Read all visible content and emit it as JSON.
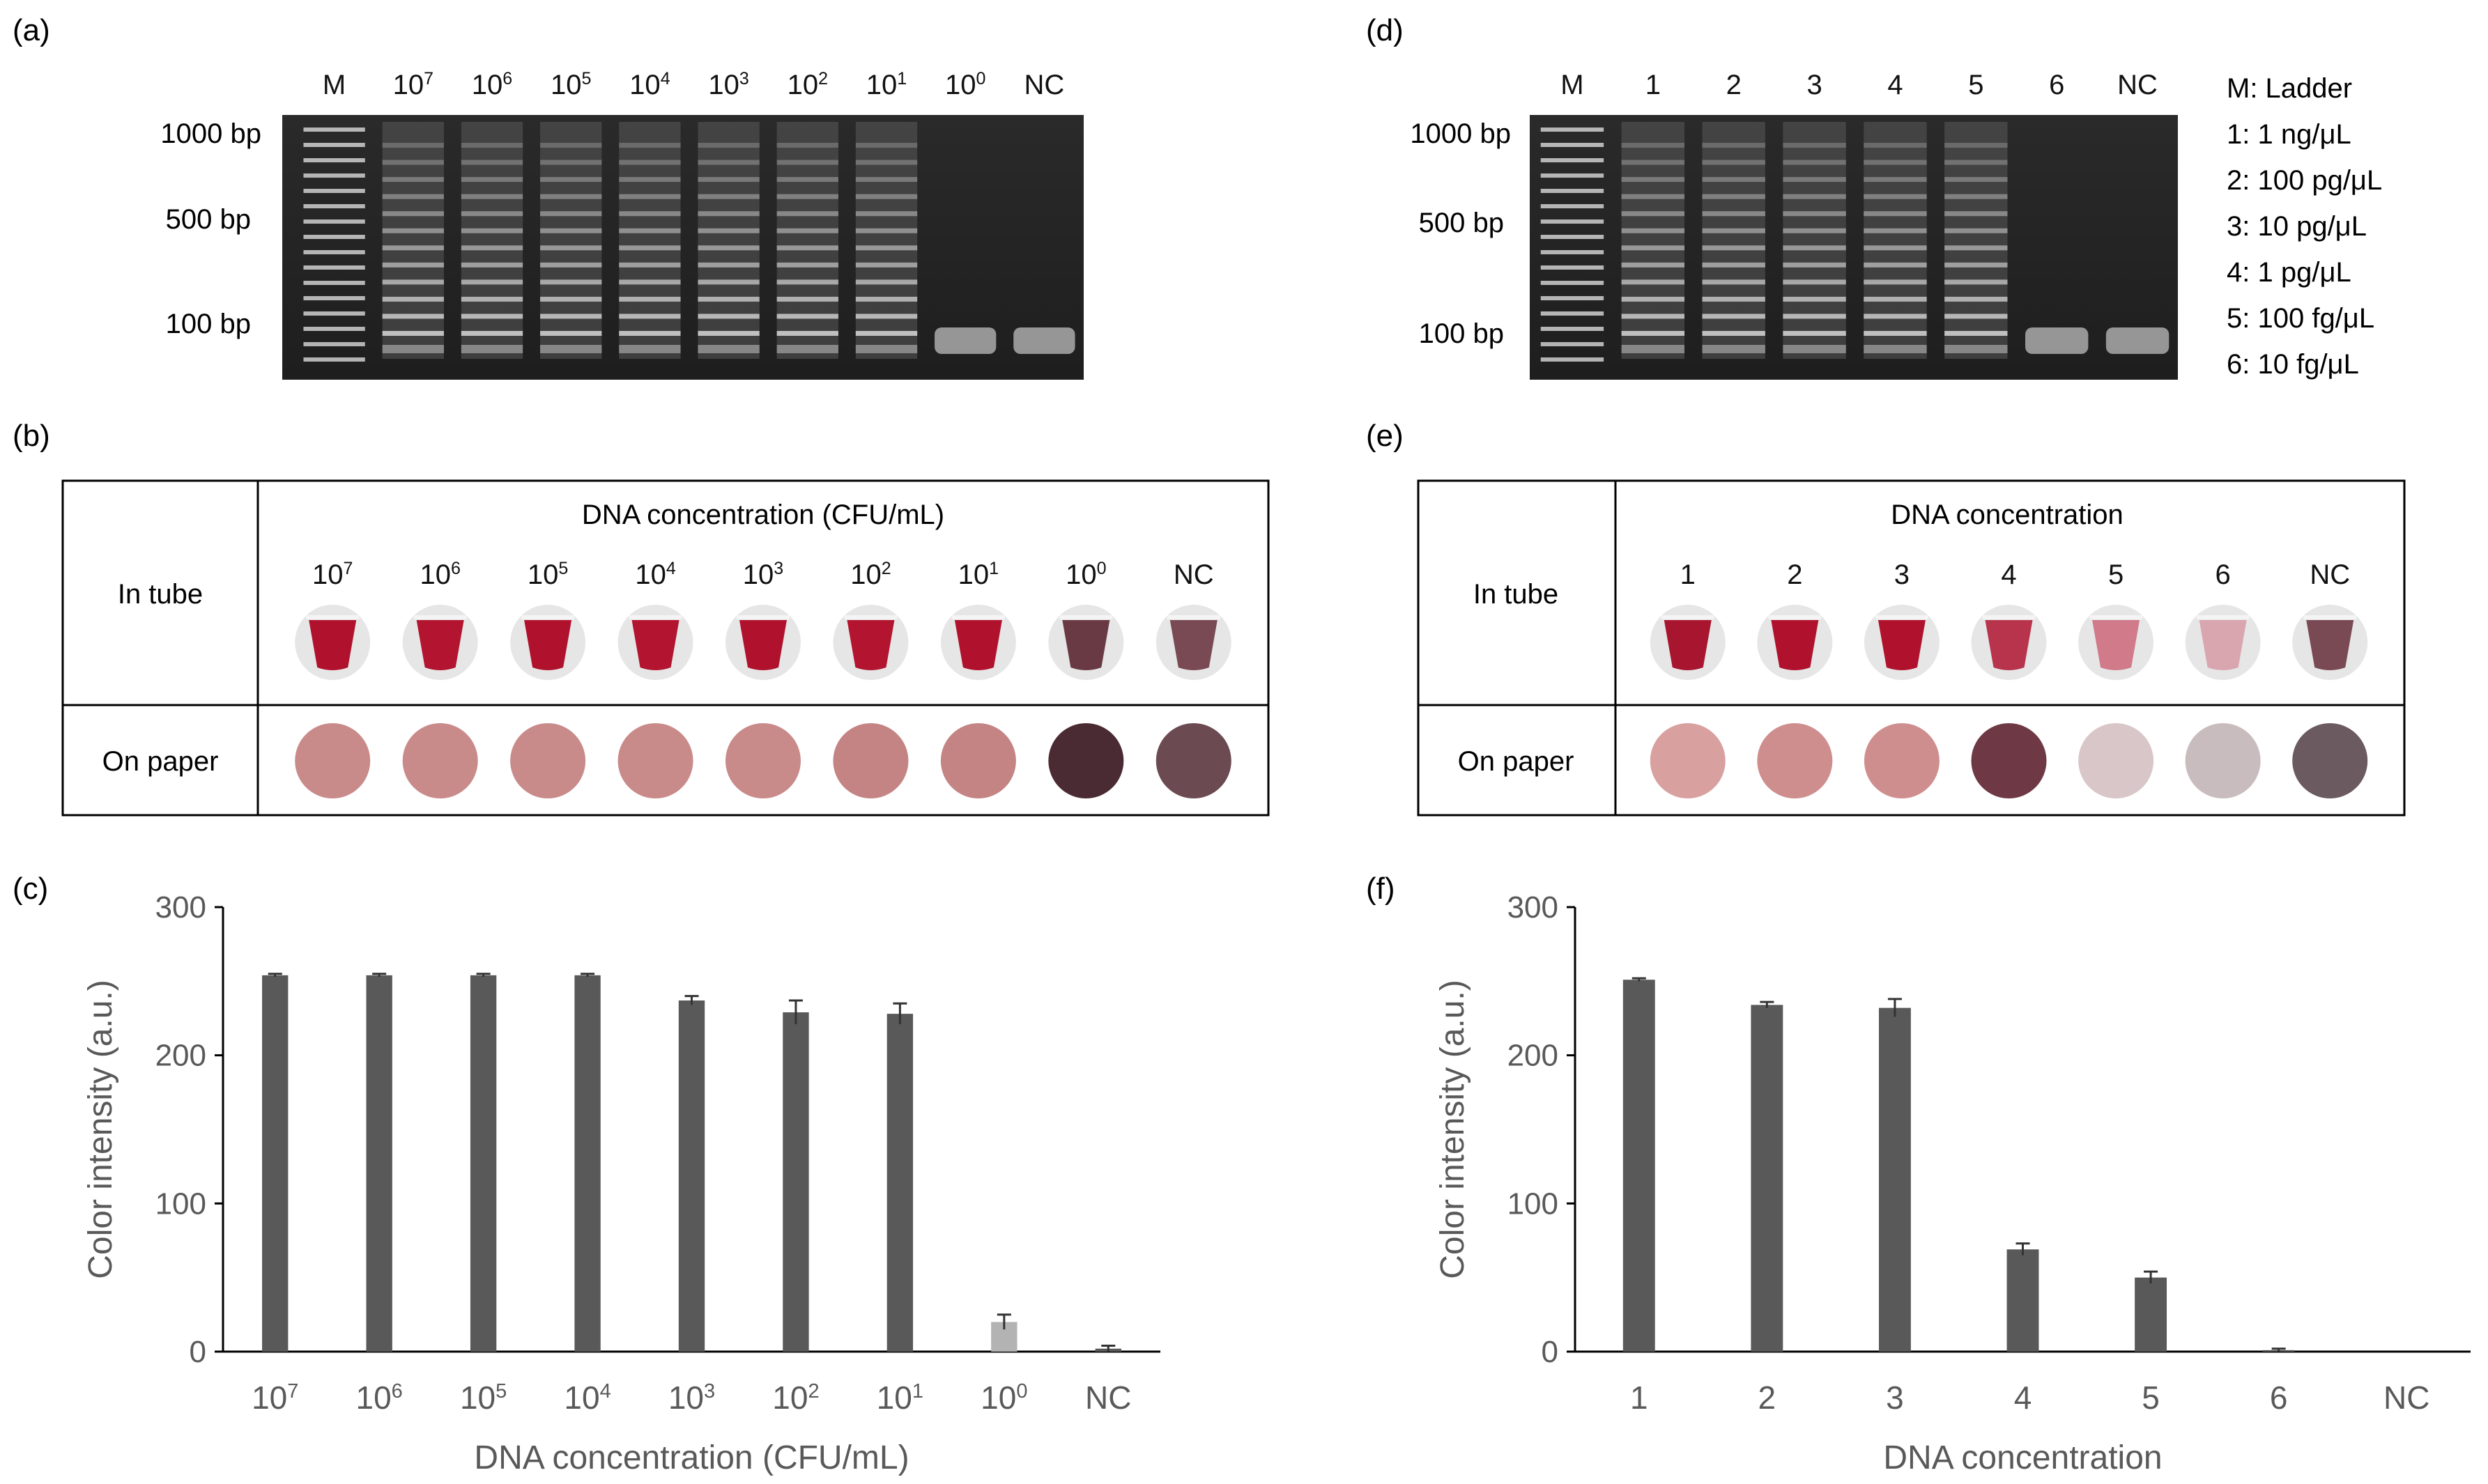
{
  "panel_labels": {
    "a": "(a)",
    "b": "(b)",
    "c": "(c)",
    "d": "(d)",
    "e": "(e)",
    "f": "(f)"
  },
  "gel_a": {
    "lanes": [
      {
        "label": "M",
        "exp": ""
      },
      {
        "label": "10",
        "exp": "7"
      },
      {
        "label": "10",
        "exp": "6"
      },
      {
        "label": "10",
        "exp": "5"
      },
      {
        "label": "10",
        "exp": "4"
      },
      {
        "label": "10",
        "exp": "3"
      },
      {
        "label": "10",
        "exp": "2"
      },
      {
        "label": "10",
        "exp": "1"
      },
      {
        "label": "10",
        "exp": "0"
      },
      {
        "label": "NC",
        "exp": ""
      }
    ],
    "size_markers": [
      "1000 bp",
      "500 bp",
      "100 bp"
    ]
  },
  "gel_d": {
    "lanes": [
      {
        "label": "M"
      },
      {
        "label": "1"
      },
      {
        "label": "2"
      },
      {
        "label": "3"
      },
      {
        "label": "4"
      },
      {
        "label": "5"
      },
      {
        "label": "6"
      },
      {
        "label": "NC"
      }
    ],
    "size_markers": [
      "1000 bp",
      "500 bp",
      "100 bp"
    ],
    "legend": [
      "M: Ladder",
      "1: 1 ng/μL",
      "2: 100 pg/μL",
      "3: 10 pg/μL",
      "4: 1 pg/μL",
      "5: 100 fg/μL",
      "6: 10 fg/μL"
    ]
  },
  "table_b": {
    "header": "DNA concentration (CFU/mL)",
    "row_tube": "In tube",
    "row_paper": "On paper",
    "columns": [
      {
        "label": "10",
        "exp": "7"
      },
      {
        "label": "10",
        "exp": "6"
      },
      {
        "label": "10",
        "exp": "5"
      },
      {
        "label": "10",
        "exp": "4"
      },
      {
        "label": "10",
        "exp": "3"
      },
      {
        "label": "10",
        "exp": "2"
      },
      {
        "label": "10",
        "exp": "1"
      },
      {
        "label": "10",
        "exp": "0"
      },
      {
        "label": "NC",
        "exp": ""
      }
    ],
    "tube_colors": [
      "#b0122e",
      "#b3142f",
      "#b0122e",
      "#b3142f",
      "#b0122e",
      "#b3142f",
      "#b0122e",
      "#6a3a44",
      "#7a4a54"
    ],
    "paper_colors": [
      "#c98a8a",
      "#c98a8a",
      "#c98a8a",
      "#c98a8a",
      "#c98a8a",
      "#c48484",
      "#c48484",
      "#4a2b33",
      "#6b4a52"
    ]
  },
  "table_e": {
    "header": "DNA concentration",
    "row_tube": "In tube",
    "row_paper": "On paper",
    "columns": [
      {
        "label": "1"
      },
      {
        "label": "2"
      },
      {
        "label": "3"
      },
      {
        "label": "4"
      },
      {
        "label": "5"
      },
      {
        "label": "6"
      },
      {
        "label": "NC"
      }
    ],
    "tube_colors": [
      "#a8152f",
      "#b0122e",
      "#b0122e",
      "#b7344c",
      "#d07a8a",
      "#d9a6b0",
      "#7a4a54"
    ],
    "paper_colors": [
      "#d9a0a0",
      "#cf8e8e",
      "#cf8e8e",
      "#6e3944",
      "#d9c6c8",
      "#c9bcbe",
      "#6b5a60"
    ]
  },
  "chart_data": [
    {
      "type": "bar",
      "panel": "(c)",
      "categories": [
        {
          "label": "10",
          "exp": "7"
        },
        {
          "label": "10",
          "exp": "6"
        },
        {
          "label": "10",
          "exp": "5"
        },
        {
          "label": "10",
          "exp": "4"
        },
        {
          "label": "10",
          "exp": "3"
        },
        {
          "label": "10",
          "exp": "2"
        },
        {
          "label": "10",
          "exp": "1"
        },
        {
          "label": "10",
          "exp": "0"
        },
        {
          "label": "NC",
          "exp": ""
        }
      ],
      "values": [
        254,
        254,
        254,
        254,
        237,
        229,
        228,
        20,
        2
      ],
      "errors": [
        1,
        1,
        1,
        1,
        3,
        8,
        7,
        5,
        2
      ],
      "bar_colors": [
        "#595959",
        "#595959",
        "#595959",
        "#595959",
        "#595959",
        "#595959",
        "#595959",
        "#b3b3b3",
        "#595959"
      ],
      "ylim": [
        0,
        300
      ],
      "yticks": [
        "0",
        "100",
        "200",
        "300"
      ],
      "xlabel": "DNA concentration (CFU/mL)",
      "ylabel": "Color intensity (a.u.)"
    },
    {
      "type": "bar",
      "panel": "(f)",
      "categories": [
        {
          "label": "1",
          "exp": ""
        },
        {
          "label": "2",
          "exp": ""
        },
        {
          "label": "3",
          "exp": ""
        },
        {
          "label": "4",
          "exp": ""
        },
        {
          "label": "5",
          "exp": ""
        },
        {
          "label": "6",
          "exp": ""
        },
        {
          "label": "NC",
          "exp": ""
        }
      ],
      "values": [
        251,
        234,
        232,
        69,
        50,
        1,
        0
      ],
      "errors": [
        1,
        2,
        6,
        4,
        4,
        1,
        0
      ],
      "bar_colors": [
        "#595959",
        "#595959",
        "#595959",
        "#595959",
        "#595959",
        "#595959",
        "#595959"
      ],
      "ylim": [
        0,
        300
      ],
      "yticks": [
        "0",
        "100",
        "200",
        "300"
      ],
      "xlabel": "DNA concentration",
      "ylabel": "Color intensity (a.u.)"
    }
  ]
}
